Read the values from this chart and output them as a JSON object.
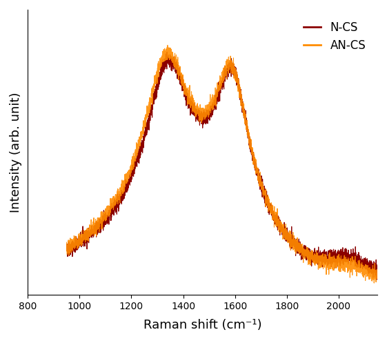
{
  "title": "",
  "xlabel": "Raman shift (cm⁻¹)",
  "ylabel": "Intensity (arb. unit)",
  "xlim": [
    800,
    2150
  ],
  "legend_labels": [
    "N-CS",
    "AN-CS"
  ],
  "colors": [
    "#8B0000",
    "#FF8C00"
  ],
  "background_color": "#ffffff",
  "x_ticks": [
    800,
    1000,
    1200,
    1400,
    1600,
    1800,
    2000
  ],
  "line_width": 0.8
}
